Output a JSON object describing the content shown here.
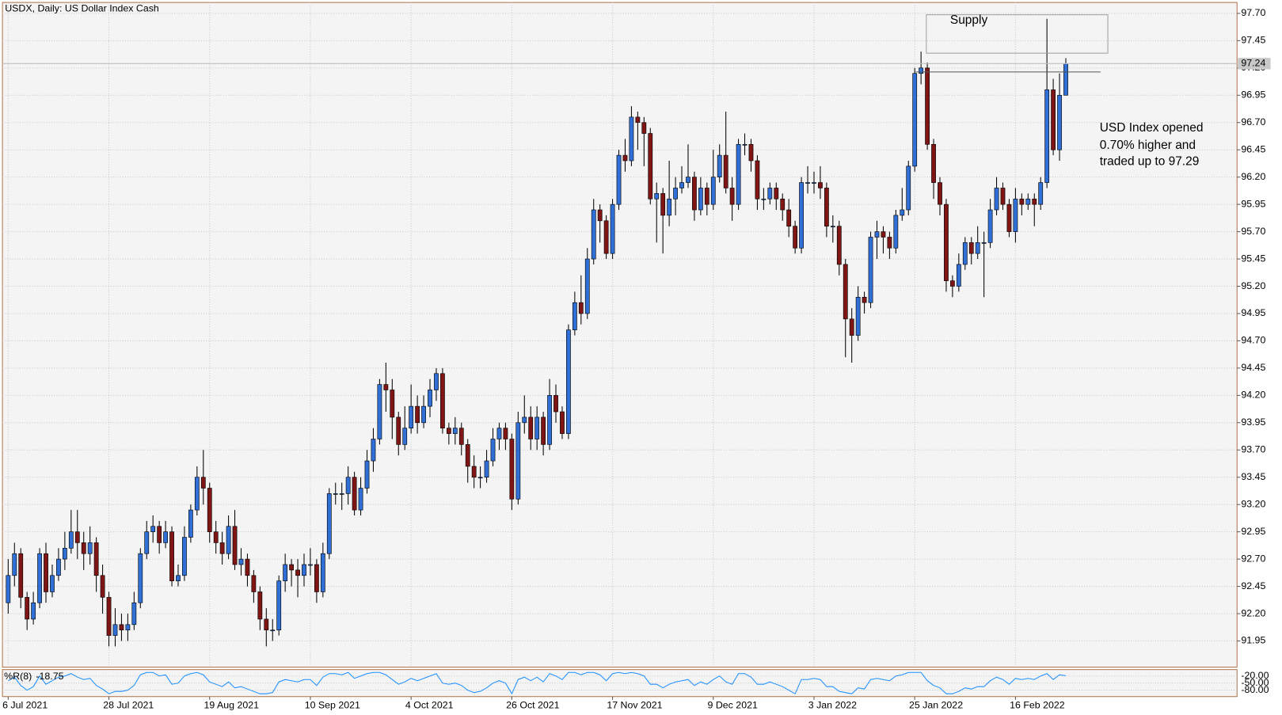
{
  "chart_data": {
    "type": "candlestick",
    "title": "USDX, Daily:  US Dollar Index Cash",
    "categories": [
      "6 Jul 2021",
      null,
      null,
      null,
      null,
      null,
      null,
      null,
      null,
      null,
      null,
      null,
      null,
      null,
      null,
      null,
      "28 Jul 2021",
      null,
      null,
      null,
      null,
      null,
      null,
      null,
      null,
      null,
      null,
      null,
      null,
      null,
      null,
      null,
      "19 Aug 2021",
      null,
      null,
      null,
      null,
      null,
      null,
      null,
      null,
      null,
      null,
      null,
      null,
      null,
      null,
      null,
      "10 Sep 2021",
      null,
      null,
      null,
      null,
      null,
      null,
      null,
      null,
      null,
      null,
      null,
      null,
      null,
      null,
      null,
      "4 Oct 2021",
      null,
      null,
      null,
      null,
      null,
      null,
      null,
      null,
      null,
      null,
      null,
      null,
      null,
      null,
      null,
      "26 Oct 2021",
      null,
      null,
      null,
      null,
      null,
      null,
      null,
      null,
      null,
      null,
      null,
      null,
      null,
      null,
      null,
      "17 Nov 2021",
      null,
      null,
      null,
      null,
      null,
      null,
      null,
      null,
      null,
      null,
      null,
      null,
      null,
      null,
      null,
      "9 Dec 2021",
      null,
      null,
      null,
      null,
      null,
      null,
      null,
      null,
      null,
      null,
      null,
      null,
      null,
      null,
      null,
      "3 Jan 2022",
      null,
      null,
      null,
      null,
      null,
      null,
      null,
      null,
      null,
      null,
      null,
      null,
      null,
      null,
      null,
      "25 Jan 2022",
      null,
      null,
      null,
      null,
      null,
      null,
      null,
      null,
      null,
      null,
      null,
      null,
      null,
      null,
      null,
      "16 Feb 2022",
      null,
      null,
      null,
      null,
      null,
      null,
      null,
      null
    ],
    "open": [
      92.3,
      92.55,
      92.75,
      92.35,
      92.15,
      92.3,
      92.75,
      92.4,
      92.55,
      92.7,
      92.8,
      92.95,
      92.85,
      92.75,
      92.85,
      92.55,
      92.35,
      92.0,
      92.1,
      92.05,
      92.1,
      92.3,
      92.75,
      92.95,
      93.0,
      92.85,
      92.95,
      92.5,
      92.55,
      92.9,
      93.15,
      93.45,
      93.35,
      92.95,
      92.85,
      92.75,
      93.0,
      92.65,
      92.7,
      92.55,
      92.4,
      92.15,
      92.05,
      92.05,
      92.5,
      92.65,
      92.6,
      92.55,
      92.65,
      92.65,
      92.4,
      92.75,
      93.3,
      93.3,
      93.3,
      93.45,
      93.15,
      93.35,
      93.6,
      93.8,
      94.3,
      94.25,
      94.0,
      93.75,
      93.9,
      94.1,
      93.95,
      94.1,
      94.25,
      94.4,
      93.9,
      93.85,
      93.9,
      93.75,
      93.55,
      93.45,
      93.45,
      93.6,
      93.8,
      93.9,
      93.8,
      93.25,
      93.95,
      94.0,
      93.8,
      94.0,
      93.75,
      94.2,
      94.05,
      93.85,
      94.8,
      95.05,
      94.95,
      95.45,
      95.9,
      95.8,
      95.5,
      95.95,
      96.4,
      96.35,
      96.75,
      96.7,
      96.6,
      96.0,
      96.05,
      95.85,
      96.0,
      96.1,
      96.15,
      96.2,
      95.9,
      96.1,
      95.95,
      96.2,
      96.4,
      96.1,
      95.95,
      96.5,
      96.5,
      96.35,
      96.0,
      96.0,
      96.1,
      96.0,
      95.9,
      95.75,
      95.55,
      96.15,
      96.15,
      96.15,
      96.1,
      95.75,
      95.75,
      95.4,
      94.9,
      94.75,
      95.1,
      95.05,
      95.65,
      95.7,
      95.65,
      95.55,
      95.85,
      95.9,
      96.3,
      97.15,
      97.2,
      96.5,
      96.15,
      95.95,
      95.25,
      95.2,
      95.4,
      95.6,
      95.5,
      95.6,
      95.6,
      95.9,
      96.1,
      95.95,
      95.7,
      96.0,
      95.95,
      96.0,
      95.95,
      96.15,
      97.0,
      96.45,
      96.95
    ],
    "high": [
      92.7,
      92.85,
      92.8,
      92.4,
      92.4,
      92.8,
      92.85,
      92.65,
      92.8,
      92.95,
      93.15,
      93.15,
      92.95,
      93.0,
      92.9,
      92.65,
      92.4,
      92.25,
      92.2,
      92.2,
      92.4,
      92.8,
      93.05,
      93.1,
      93.05,
      93.05,
      93.0,
      92.65,
      93.0,
      93.2,
      93.55,
      93.7,
      93.4,
      93.05,
      92.95,
      93.1,
      93.15,
      92.8,
      92.75,
      92.6,
      92.45,
      92.25,
      92.15,
      92.55,
      92.75,
      92.7,
      92.7,
      92.75,
      92.8,
      92.7,
      92.85,
      93.35,
      93.4,
      93.4,
      93.55,
      93.5,
      93.45,
      93.7,
      93.9,
      94.35,
      94.5,
      94.35,
      94.05,
      94.1,
      94.3,
      94.2,
      94.2,
      94.35,
      94.45,
      94.45,
      93.95,
      94.0,
      93.95,
      93.8,
      93.65,
      93.55,
      93.7,
      93.9,
      93.95,
      93.95,
      93.85,
      94.05,
      94.2,
      94.1,
      94.1,
      94.05,
      94.35,
      94.3,
      94.1,
      94.85,
      95.15,
      95.3,
      95.55,
      96.0,
      95.95,
      95.85,
      96.0,
      96.45,
      96.55,
      96.85,
      96.8,
      96.75,
      96.65,
      96.15,
      96.1,
      96.35,
      96.2,
      96.3,
      96.5,
      96.25,
      96.2,
      96.15,
      96.45,
      96.5,
      96.8,
      96.2,
      96.55,
      96.6,
      96.55,
      96.4,
      96.1,
      96.15,
      96.15,
      96.05,
      96.0,
      95.8,
      96.2,
      96.3,
      96.25,
      96.3,
      96.15,
      95.85,
      95.8,
      95.45,
      95.0,
      95.2,
      95.15,
      95.7,
      95.8,
      95.75,
      95.7,
      95.9,
      96.1,
      96.35,
      97.2,
      97.35,
      97.25,
      96.55,
      96.2,
      96.0,
      95.3,
      95.5,
      95.65,
      95.65,
      95.75,
      95.7,
      96.0,
      96.2,
      96.15,
      96.0,
      96.1,
      96.05,
      96.05,
      96.05,
      96.2,
      97.65,
      97.1,
      97.15,
      97.29
    ],
    "low": [
      92.2,
      92.45,
      92.25,
      92.05,
      92.1,
      92.25,
      92.3,
      92.35,
      92.5,
      92.6,
      92.75,
      92.7,
      92.6,
      92.65,
      92.4,
      92.2,
      91.9,
      91.9,
      91.95,
      91.95,
      92.05,
      92.25,
      92.7,
      92.85,
      92.75,
      92.8,
      92.45,
      92.45,
      92.5,
      92.85,
      93.1,
      93.2,
      92.85,
      92.75,
      92.65,
      92.7,
      92.6,
      92.55,
      92.45,
      92.3,
      92.05,
      91.9,
      91.95,
      92.0,
      92.4,
      92.45,
      92.35,
      92.45,
      92.55,
      92.3,
      92.35,
      92.7,
      93.2,
      93.15,
      93.2,
      93.1,
      93.1,
      93.3,
      93.5,
      93.75,
      94.05,
      93.8,
      93.65,
      93.7,
      93.85,
      93.85,
      93.9,
      94.0,
      94.15,
      93.85,
      93.75,
      93.75,
      93.65,
      93.4,
      93.35,
      93.35,
      93.4,
      93.55,
      93.7,
      93.7,
      93.15,
      93.2,
      93.85,
      93.7,
      93.7,
      93.65,
      93.7,
      93.95,
      93.8,
      93.8,
      94.75,
      94.85,
      94.9,
      95.4,
      95.6,
      95.45,
      95.45,
      95.9,
      96.25,
      96.3,
      96.45,
      96.3,
      95.95,
      95.6,
      95.5,
      95.75,
      95.85,
      96.05,
      96.1,
      95.8,
      95.85,
      95.85,
      95.9,
      96.15,
      96.05,
      95.8,
      95.9,
      96.4,
      96.25,
      95.9,
      95.9,
      95.95,
      95.9,
      95.8,
      95.65,
      95.5,
      95.5,
      96.05,
      96.05,
      96.0,
      95.65,
      95.6,
      95.3,
      94.55,
      94.5,
      94.7,
      94.95,
      95.0,
      95.45,
      95.5,
      95.45,
      95.5,
      95.8,
      95.85,
      96.25,
      97.05,
      96.45,
      96.0,
      95.85,
      95.15,
      95.1,
      95.15,
      95.35,
      95.4,
      95.45,
      95.1,
      95.55,
      95.85,
      95.9,
      95.65,
      95.6,
      95.85,
      95.9,
      95.75,
      95.9,
      96.1,
      96.4,
      96.35,
      96.95
    ],
    "close": [
      92.55,
      92.75,
      92.35,
      92.15,
      92.3,
      92.75,
      92.4,
      92.55,
      92.7,
      92.8,
      92.95,
      92.85,
      92.75,
      92.85,
      92.55,
      92.35,
      92.0,
      92.1,
      92.05,
      92.1,
      92.3,
      92.75,
      92.95,
      93.0,
      92.85,
      92.95,
      92.5,
      92.55,
      92.9,
      93.15,
      93.45,
      93.35,
      92.95,
      92.85,
      92.75,
      93.0,
      92.65,
      92.7,
      92.55,
      92.4,
      92.15,
      92.05,
      92.05,
      92.5,
      92.65,
      92.6,
      92.55,
      92.65,
      92.65,
      92.4,
      92.75,
      93.3,
      93.3,
      93.3,
      93.45,
      93.15,
      93.35,
      93.6,
      93.8,
      94.3,
      94.25,
      94.0,
      93.75,
      93.9,
      94.1,
      93.95,
      94.1,
      94.25,
      94.4,
      93.9,
      93.85,
      93.9,
      93.75,
      93.55,
      93.45,
      93.45,
      93.6,
      93.8,
      93.9,
      93.8,
      93.25,
      93.95,
      94.0,
      93.8,
      94.0,
      93.75,
      94.2,
      94.05,
      93.85,
      94.8,
      95.05,
      94.95,
      95.45,
      95.9,
      95.8,
      95.5,
      95.95,
      96.4,
      96.35,
      96.75,
      96.7,
      96.6,
      96.0,
      96.05,
      95.85,
      96.0,
      96.1,
      96.15,
      96.2,
      95.9,
      96.1,
      95.95,
      96.2,
      96.4,
      96.1,
      95.95,
      96.5,
      96.5,
      96.35,
      96.0,
      96.0,
      96.1,
      96.0,
      95.9,
      95.75,
      95.55,
      96.15,
      96.15,
      96.15,
      96.1,
      95.75,
      95.75,
      95.4,
      94.9,
      94.75,
      95.1,
      95.05,
      95.65,
      95.7,
      95.65,
      95.55,
      95.85,
      95.9,
      96.3,
      97.15,
      97.2,
      96.5,
      96.15,
      95.95,
      95.25,
      95.2,
      95.4,
      95.6,
      95.5,
      95.6,
      95.6,
      95.9,
      96.1,
      95.95,
      95.7,
      96.0,
      95.95,
      96.0,
      95.95,
      96.15,
      97.0,
      96.45,
      96.95,
      97.24
    ],
    "up_color": "#2f6fd6",
    "down_color": "#7f1515",
    "ylim": [
      91.71,
      97.8
    ],
    "yticks": [
      91.95,
      {
        "value": 92.2,
        "label": "92.20"
      },
      92.45,
      {
        "value": 92.7,
        "label": "92.70"
      },
      92.95,
      {
        "value": 93.2,
        "label": "93.20"
      },
      93.45,
      {
        "value": 93.7,
        "label": "93.70"
      },
      93.95,
      {
        "value": 94.2,
        "label": "94.20"
      },
      94.45,
      {
        "value": 94.7,
        "label": "94.70"
      },
      94.95,
      {
        "value": 95.2,
        "label": "95.20"
      },
      95.45,
      {
        "value": 95.7,
        "label": "95.70"
      },
      95.95,
      {
        "value": 96.2,
        "label": "96.20"
      },
      96.45,
      {
        "value": 96.7,
        "label": "96.70"
      },
      96.95,
      {
        "value": 97.2,
        "label": "97.20"
      },
      97.45,
      {
        "value": 97.7,
        "label": "97.70"
      }
    ],
    "grid": true,
    "indicator": {
      "type": "line",
      "name": "%R(8)",
      "color": "#1e90ff",
      "ylim": [
        -100,
        0
      ],
      "yticks": [
        {
          "value": -20,
          "label": "-20.00"
        },
        {
          "value": -50,
          "label": "-50.00"
        },
        {
          "value": -80,
          "label": "-80.00"
        }
      ],
      "values": [
        -40,
        -25,
        -60,
        -80,
        -65,
        -20,
        -55,
        -40,
        -25,
        -20,
        -10,
        -25,
        -35,
        -30,
        -60,
        -75,
        -95,
        -85,
        -85,
        -80,
        -60,
        -15,
        -5,
        -5,
        -20,
        -15,
        -55,
        -50,
        -20,
        -10,
        -5,
        -15,
        -45,
        -55,
        -65,
        -45,
        -70,
        -65,
        -75,
        -85,
        -95,
        -95,
        -90,
        -45,
        -35,
        -40,
        -45,
        -35,
        -35,
        -60,
        -25,
        -10,
        -10,
        -15,
        -5,
        -30,
        -20,
        -10,
        -5,
        -5,
        -15,
        -35,
        -55,
        -45,
        -30,
        -40,
        -30,
        -20,
        -10,
        -50,
        -55,
        -50,
        -60,
        -80,
        -90,
        -85,
        -70,
        -50,
        -40,
        -50,
        -95,
        -35,
        -25,
        -40,
        -25,
        -45,
        -10,
        -20,
        -35,
        -5,
        -5,
        -15,
        -5,
        -5,
        -15,
        -40,
        -10,
        -5,
        -10,
        -5,
        -10,
        -20,
        -55,
        -55,
        -70,
        -55,
        -45,
        -40,
        -35,
        -60,
        -45,
        -55,
        -35,
        -20,
        -45,
        -55,
        -10,
        -10,
        -25,
        -55,
        -55,
        -45,
        -55,
        -65,
        -80,
        -95,
        -35,
        -35,
        -30,
        -35,
        -65,
        -65,
        -85,
        -90,
        -95,
        -70,
        -75,
        -35,
        -30,
        -35,
        -40,
        -20,
        -15,
        -5,
        -5,
        -5,
        -40,
        -60,
        -70,
        -95,
        -95,
        -85,
        -70,
        -75,
        -65,
        -65,
        -40,
        -25,
        -35,
        -55,
        -30,
        -35,
        -30,
        -35,
        -20,
        -10,
        -35,
        -15,
        -18.75
      ]
    },
    "annotations": [
      "Supply",
      "USD Index opened",
      "0.70% higher and",
      "traded up to 97.29"
    ]
  }
}
